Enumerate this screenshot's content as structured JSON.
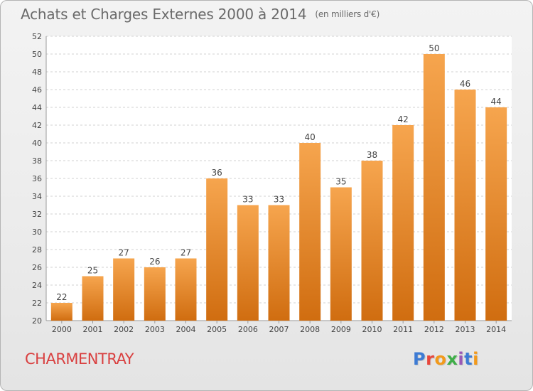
{
  "header": {
    "title": "Achats et Charges Externes 2000 à 2014",
    "unit": "(en milliers d'€)"
  },
  "footer": {
    "place": "CHARMENTRAY",
    "logo": "Proxiti"
  },
  "colors": {
    "bar_top": "#f6a54e",
    "bar_bottom": "#d06d10",
    "title": "#6a6a6a",
    "place": "#d94040",
    "logo_letters": [
      "#3d7bd4",
      "#e8463c",
      "#f29a1c",
      "#3fae49",
      "#9b59b6",
      "#3d7bd4",
      "#f29a1c"
    ]
  },
  "chart_data": {
    "type": "bar",
    "categories": [
      "2000",
      "2001",
      "2002",
      "2003",
      "2004",
      "2005",
      "2006",
      "2007",
      "2008",
      "2009",
      "2010",
      "2011",
      "2012",
      "2013",
      "2014"
    ],
    "values": [
      22,
      25,
      27,
      26,
      27,
      36,
      33,
      33,
      40,
      35,
      38,
      42,
      50,
      46,
      44
    ],
    "ylim": [
      20,
      52
    ],
    "yticks": [
      20,
      22,
      24,
      26,
      28,
      30,
      32,
      34,
      36,
      38,
      40,
      42,
      44,
      46,
      48,
      50,
      52
    ],
    "grid": "horizontal dashed",
    "data_labels": true
  }
}
